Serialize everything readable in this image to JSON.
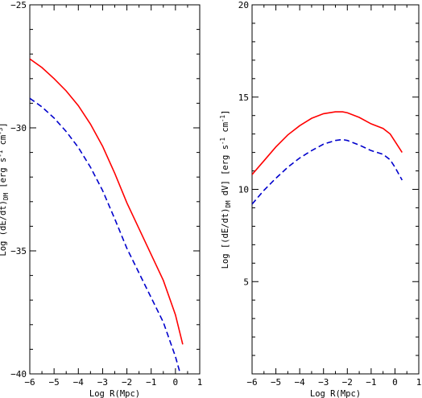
{
  "chart_data": [
    {
      "type": "line",
      "xlabel": "Log R(Mpc)",
      "ylabel": "Log (dE/dt)_DM [erg s^-1 cm^-3]",
      "xlim": [
        -6,
        1
      ],
      "ylim": [
        -40,
        -25
      ],
      "x_major_ticks": [
        -6,
        -5,
        -4,
        -3,
        -2,
        -1,
        0,
        1
      ],
      "x_tick_labels": [
        "-6",
        "-5",
        "-4",
        "-3",
        "-2",
        "-1",
        "0",
        "1"
      ],
      "y_major_ticks": [
        -40,
        -35,
        -30,
        -25
      ],
      "y_tick_labels": [
        "-40",
        "-35",
        "-30",
        "-25"
      ],
      "grid": false,
      "series": [
        {
          "color": "#ff0000",
          "style": "solid",
          "x": [
            -6.0,
            -5.5,
            -5.0,
            -4.5,
            -4.0,
            -3.5,
            -3.0,
            -2.5,
            -2.0,
            -1.5,
            -1.0,
            -0.5,
            0.0,
            0.3
          ],
          "y": [
            -27.2,
            -27.55,
            -28.0,
            -28.5,
            -29.1,
            -29.85,
            -30.75,
            -31.85,
            -33.05,
            -34.1,
            -35.15,
            -36.2,
            -37.6,
            -38.8
          ]
        },
        {
          "color": "#0000cc",
          "style": "dashed",
          "x": [
            -6.0,
            -5.5,
            -5.0,
            -4.5,
            -4.0,
            -3.5,
            -3.0,
            -2.5,
            -2.0,
            -1.5,
            -1.0,
            -0.5,
            0.0,
            0.2
          ],
          "y": [
            -28.8,
            -29.15,
            -29.6,
            -30.15,
            -30.8,
            -31.6,
            -32.55,
            -33.7,
            -34.9,
            -35.9,
            -36.9,
            -37.9,
            -39.3,
            -40.0
          ]
        }
      ]
    },
    {
      "type": "line",
      "xlabel": "Log R(Mpc)",
      "ylabel": "Log [(dE/dt)_DM dV] [erg s^-1 cm^-1]",
      "xlim": [
        -6,
        1
      ],
      "ylim": [
        0,
        20
      ],
      "x_major_ticks": [
        -6,
        -5,
        -4,
        -3,
        -2,
        -1,
        0,
        1
      ],
      "x_tick_labels": [
        "-6",
        "-5",
        "-4",
        "-3",
        "-2",
        "-1",
        "0",
        "1"
      ],
      "y_major_ticks": [
        5,
        10,
        15,
        20
      ],
      "y_tick_labels": [
        "5",
        "10",
        "15",
        "20"
      ],
      "grid": false,
      "series": [
        {
          "color": "#ff0000",
          "style": "solid",
          "x": [
            -6.0,
            -5.5,
            -5.0,
            -4.5,
            -4.0,
            -3.5,
            -3.0,
            -2.5,
            -2.2,
            -2.0,
            -1.5,
            -1.0,
            -0.5,
            -0.2,
            0.0,
            0.3
          ],
          "y": [
            10.8,
            11.55,
            12.3,
            12.95,
            13.45,
            13.85,
            14.1,
            14.2,
            14.2,
            14.15,
            13.9,
            13.55,
            13.3,
            13.0,
            12.6,
            12.0
          ]
        },
        {
          "color": "#0000cc",
          "style": "dashed",
          "x": [
            -6.0,
            -5.5,
            -5.0,
            -4.5,
            -4.0,
            -3.5,
            -3.0,
            -2.5,
            -2.2,
            -2.0,
            -1.5,
            -1.0,
            -0.5,
            -0.2,
            0.0,
            0.3
          ],
          "y": [
            9.2,
            9.95,
            10.6,
            11.2,
            11.7,
            12.1,
            12.45,
            12.65,
            12.7,
            12.65,
            12.4,
            12.1,
            11.9,
            11.6,
            11.2,
            10.5
          ]
        }
      ]
    }
  ]
}
